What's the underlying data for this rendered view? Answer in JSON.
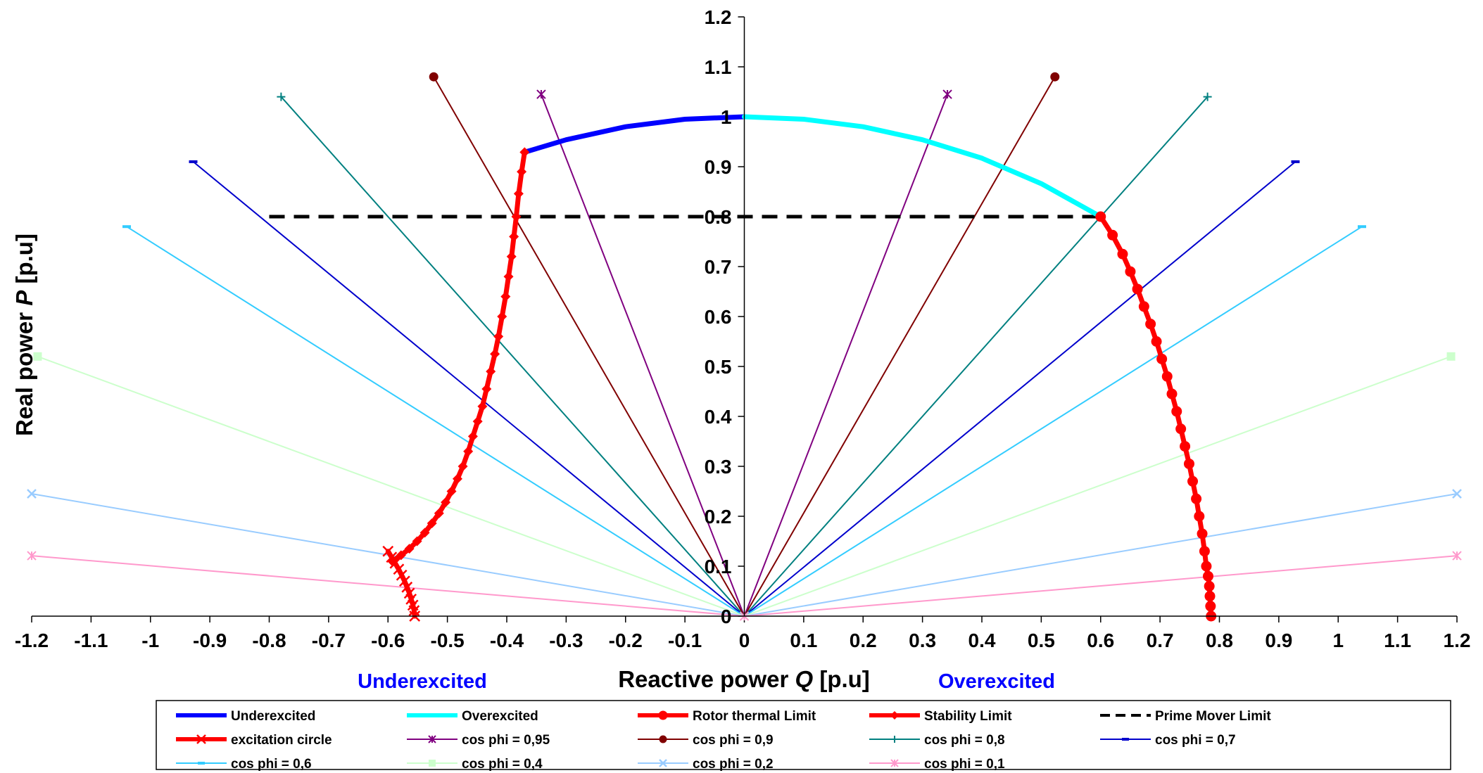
{
  "chart_data": {
    "type": "line",
    "xlabel_parts": [
      "Reactive power ",
      "Q",
      " [p.u]"
    ],
    "ylabel_parts": [
      "Real power ",
      "P",
      " [p.u]"
    ],
    "xlim": [
      -1.2,
      1.2
    ],
    "ylim": [
      0,
      1.2
    ],
    "x_ticks": [
      "-1.2",
      "-1.1",
      "-1",
      "-0.9",
      "-0.8",
      "-0.7",
      "-0.6",
      "-0.5",
      "-0.4",
      "-0.3",
      "-0.2",
      "-0.1",
      "0",
      "0.1",
      "0.2",
      "0.3",
      "0.4",
      "0.5",
      "0.6",
      "0.7",
      "0.8",
      "0.9",
      "1",
      "1.1",
      "1.2"
    ],
    "y_ticks": [
      "0",
      "0.1",
      "0.2",
      "0.3",
      "0.4",
      "0.5",
      "0.6",
      "0.7",
      "0.8",
      "0.9",
      "1",
      "1.1",
      "1.2"
    ],
    "annotations": [
      {
        "text": "Underexcited",
        "x": -0.54
      },
      {
        "text": "Overexcited",
        "x": 0.54
      }
    ],
    "legend_position": "bottom",
    "series": [
      {
        "name": "Underexcited",
        "color": "#0000ff",
        "marker": "none",
        "dash": "solid",
        "width": 7,
        "x": [
          -0.37,
          -0.3,
          -0.2,
          -0.1,
          0
        ],
        "y": [
          0.929,
          0.954,
          0.98,
          0.995,
          1.0
        ]
      },
      {
        "name": "Overexcited",
        "color": "#00ffff",
        "marker": "none",
        "dash": "solid",
        "width": 7,
        "x": [
          0,
          0.1,
          0.2,
          0.3,
          0.4,
          0.5,
          0.6
        ],
        "y": [
          1.0,
          0.995,
          0.98,
          0.954,
          0.917,
          0.866,
          0.8
        ]
      },
      {
        "name": "Rotor thermal Limit",
        "color": "#ff0000",
        "marker": "circle",
        "dash": "solid",
        "width": 7,
        "x": [
          0.6,
          0.62,
          0.637,
          0.65,
          0.662,
          0.673,
          0.684,
          0.694,
          0.703,
          0.712,
          0.72,
          0.728,
          0.735,
          0.742,
          0.749,
          0.755,
          0.761,
          0.766,
          0.771,
          0.775,
          0.778,
          0.781,
          0.783,
          0.784,
          0.785,
          0.786
        ],
        "y": [
          0.8,
          0.763,
          0.725,
          0.69,
          0.655,
          0.62,
          0.585,
          0.55,
          0.515,
          0.48,
          0.445,
          0.41,
          0.375,
          0.34,
          0.305,
          0.27,
          0.235,
          0.2,
          0.165,
          0.13,
          0.1,
          0.08,
          0.06,
          0.04,
          0.02,
          0.0
        ]
      },
      {
        "name": "Stability Limit",
        "color": "#ff0000",
        "marker": "diamond",
        "dash": "solid",
        "width": 7,
        "x": [
          -0.37,
          -0.375,
          -0.38,
          -0.384,
          -0.388,
          -0.392,
          -0.397,
          -0.402,
          -0.408,
          -0.414,
          -0.42,
          -0.427,
          -0.434,
          -0.441,
          -0.449,
          -0.457,
          -0.465,
          -0.474,
          -0.483,
          -0.493,
          -0.503,
          -0.514,
          -0.526,
          -0.538,
          -0.551,
          -0.564,
          -0.578,
          -0.593
        ],
        "y": [
          0.929,
          0.89,
          0.846,
          0.8,
          0.76,
          0.72,
          0.68,
          0.64,
          0.6,
          0.56,
          0.525,
          0.49,
          0.455,
          0.42,
          0.39,
          0.36,
          0.33,
          0.3,
          0.275,
          0.25,
          0.228,
          0.206,
          0.186,
          0.167,
          0.15,
          0.135,
          0.122,
          0.11
        ]
      },
      {
        "name": "Prime Mover Limit",
        "color": "#000000",
        "marker": "none",
        "dash": "dashed",
        "width": 5,
        "x": [
          -0.8,
          0.6
        ],
        "y": [
          0.8,
          0.8
        ]
      },
      {
        "name": "excitation circle",
        "color": "#ff0000",
        "marker": "x",
        "dash": "solid",
        "width": 7,
        "x": [
          -0.6,
          -0.594,
          -0.588,
          -0.582,
          -0.577,
          -0.572,
          -0.568,
          -0.564,
          -0.561,
          -0.558,
          -0.556,
          -0.555
        ],
        "y": [
          0.13,
          0.118,
          0.106,
          0.094,
          0.082,
          0.07,
          0.058,
          0.046,
          0.034,
          0.022,
          0.011,
          0.0
        ]
      },
      {
        "name": "cos phi = 0,95",
        "color": "#800080",
        "marker": "asterisk",
        "dash": "solid",
        "width": 2,
        "x": [
          -0.342,
          0,
          0.342
        ],
        "y": [
          1.045,
          0,
          1.045
        ]
      },
      {
        "name": "cos phi = 0,9",
        "color": "#800000",
        "marker": "circle",
        "dash": "solid",
        "width": 2,
        "x": [
          -0.523,
          0,
          0.523
        ],
        "y": [
          1.08,
          0,
          1.08
        ]
      },
      {
        "name": "cos phi = 0,8",
        "color": "#008080",
        "marker": "plus",
        "dash": "solid",
        "width": 2,
        "x": [
          -0.78,
          0,
          0.78
        ],
        "y": [
          1.04,
          0,
          1.04
        ]
      },
      {
        "name": "cos phi = 0,7",
        "color": "#0000cc",
        "marker": "dash",
        "dash": "solid",
        "width": 2,
        "x": [
          -0.928,
          0,
          0.928
        ],
        "y": [
          0.91,
          0,
          0.91
        ]
      },
      {
        "name": "cos phi = 0,6",
        "color": "#33ccff",
        "marker": "dash",
        "dash": "solid",
        "width": 2,
        "x": [
          -1.04,
          0,
          1.04
        ],
        "y": [
          0.78,
          0,
          0.78
        ]
      },
      {
        "name": "cos phi = 0,4",
        "color": "#ccffcc",
        "marker": "square",
        "dash": "solid",
        "width": 2,
        "x": [
          -1.19,
          0,
          1.19
        ],
        "y": [
          0.52,
          0,
          0.52
        ]
      },
      {
        "name": "cos phi = 0,2",
        "color": "#99ccff",
        "marker": "x",
        "dash": "solid",
        "width": 2,
        "x": [
          -1.2,
          0,
          1.2
        ],
        "y": [
          0.245,
          0,
          0.245
        ]
      },
      {
        "name": "cos phi = 0,1",
        "color": "#ff99cc",
        "marker": "asterisk",
        "dash": "solid",
        "width": 2,
        "x": [
          -1.2,
          0,
          1.2
        ],
        "y": [
          0.121,
          0,
          0.121
        ]
      }
    ]
  }
}
